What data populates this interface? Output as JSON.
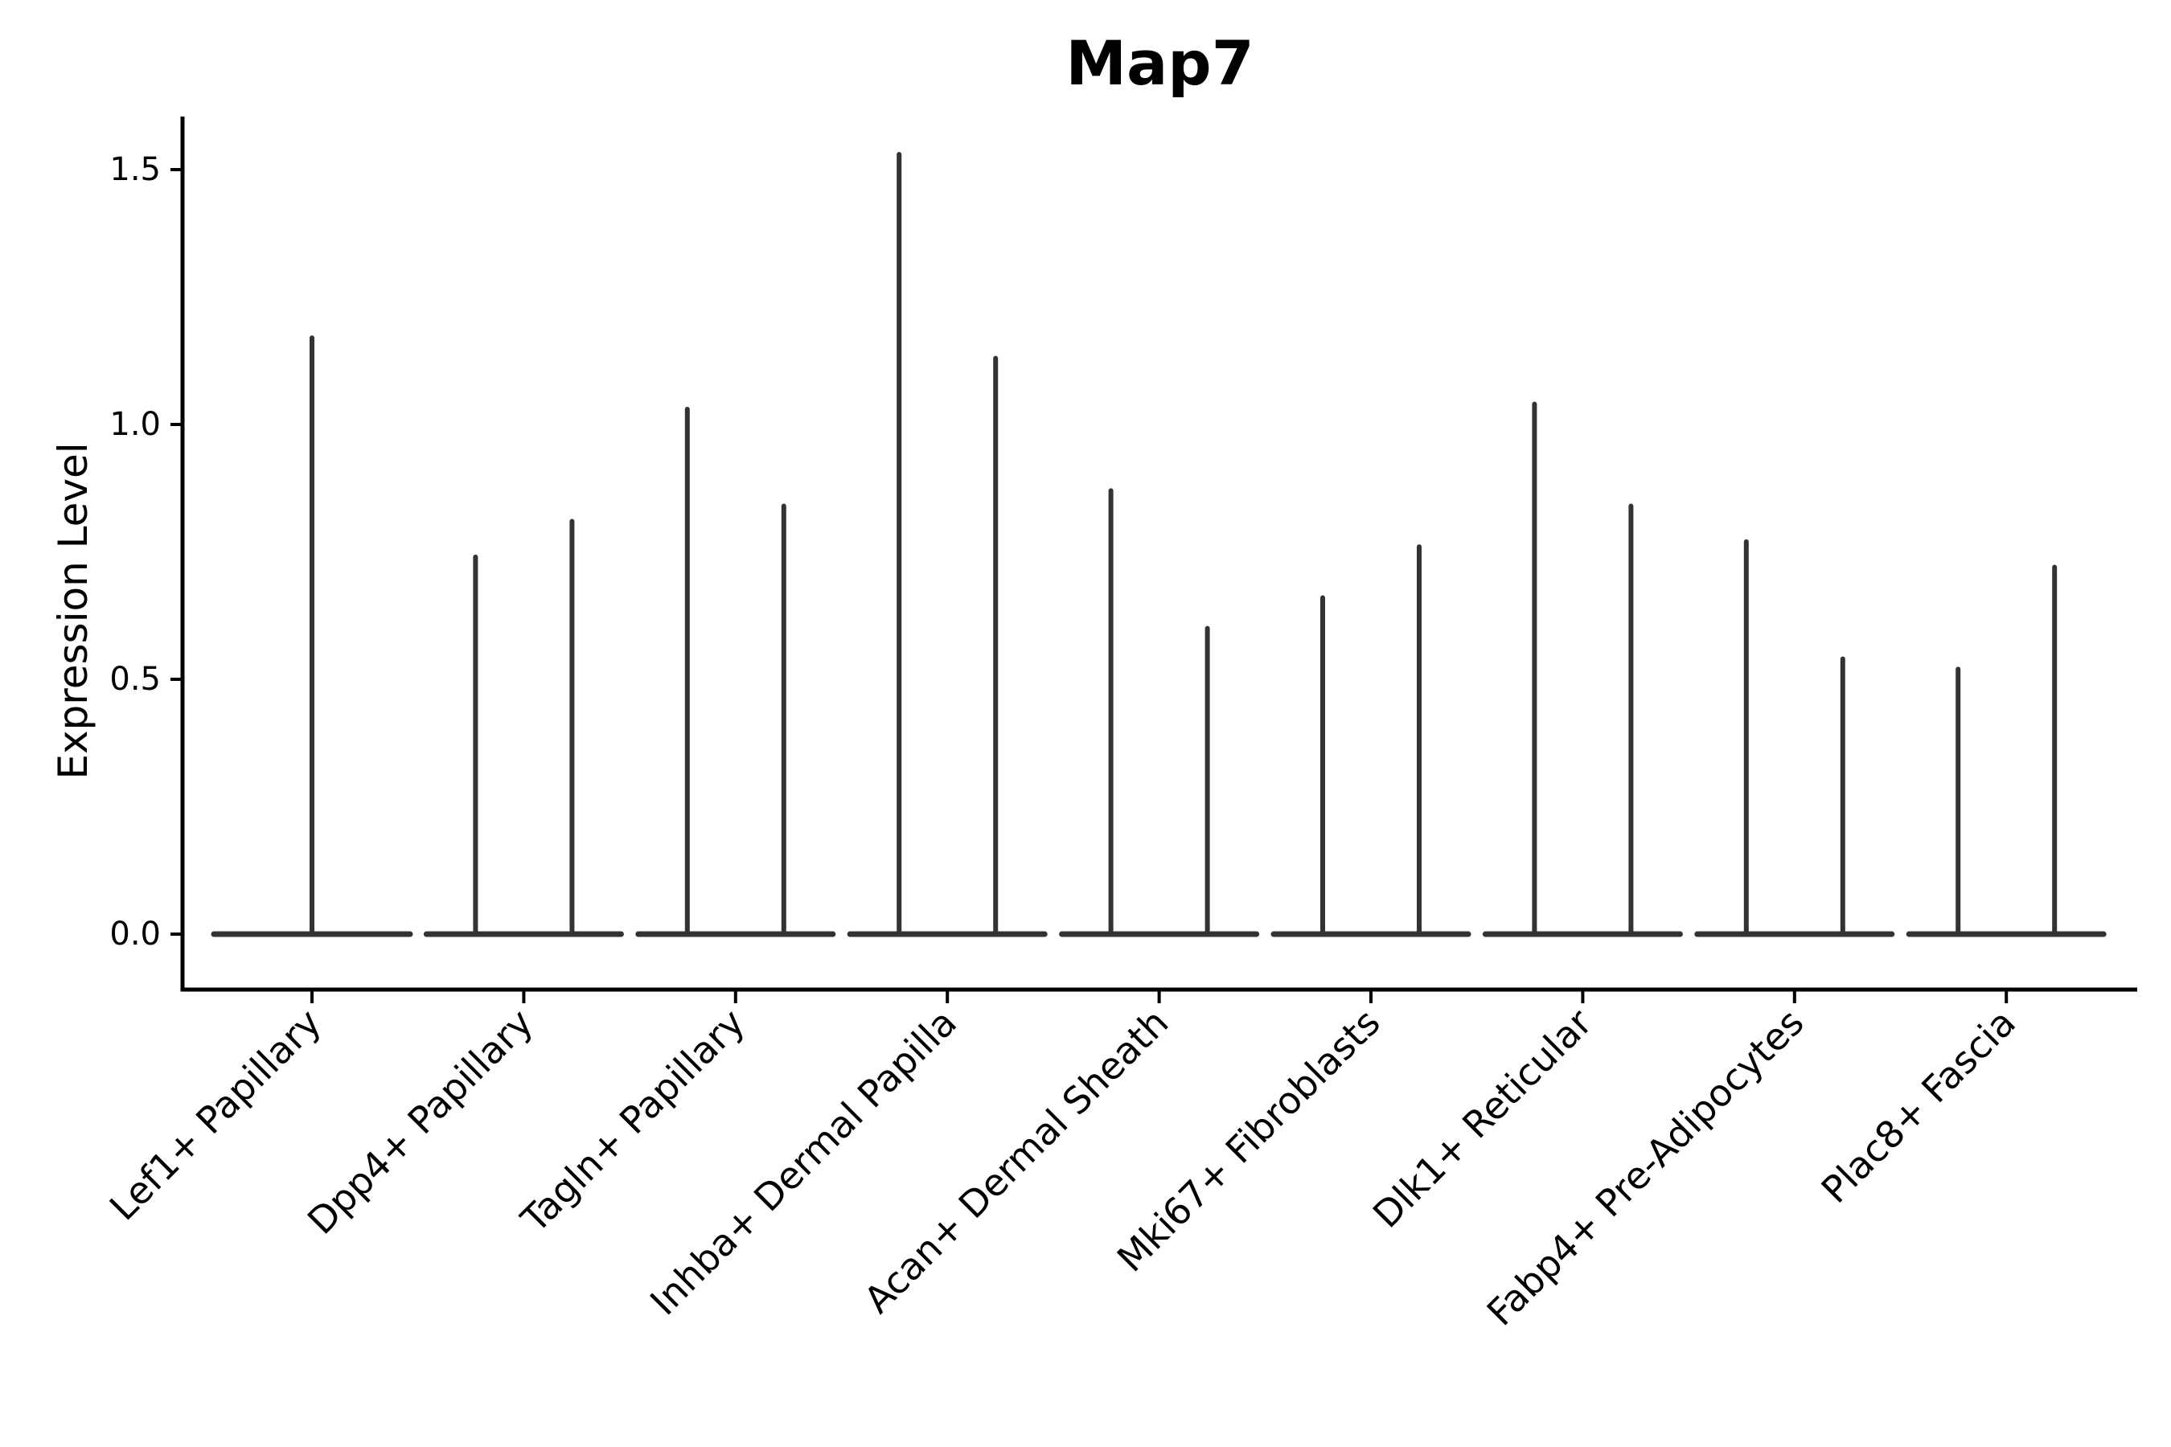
{
  "figure": {
    "title": "Map7",
    "ylabel": "Expression Level",
    "background_color": "#ffffff",
    "axis_color": "#000000",
    "violin_color": "#333333"
  },
  "chart_data": {
    "type": "violin",
    "title": "Map7",
    "xlabel": "",
    "ylabel": "Expression Level",
    "yticks": [
      0.0,
      0.5,
      1.0,
      1.5
    ],
    "ytick_labels": [
      "0.0",
      "0.5",
      "1.0",
      "1.5"
    ],
    "ylim": [
      -0.11,
      1.6
    ],
    "grid": false,
    "legend_position": "none",
    "x_tick_rotation_deg": 45,
    "categories": [
      "Lef1+ Papillary",
      "Dpp4+ Papillary",
      "Tagln+ Papillary",
      "Inhba+ Dermal Papilla",
      "Acan+ Dermal Sheath",
      "Mki67+ Fibroblasts",
      "Dlk1+ Reticular",
      "Fabp4+ Pre-Adipocytes",
      "Plac8+ Fascia"
    ],
    "series": [
      {
        "category": "Lef1+ Papillary",
        "violin_max_values": [
          1.17
        ]
      },
      {
        "category": "Dpp4+ Papillary",
        "violin_max_values": [
          0.74,
          0.81
        ]
      },
      {
        "category": "Tagln+ Papillary",
        "violin_max_values": [
          1.03,
          0.84
        ]
      },
      {
        "category": "Inhba+ Dermal Papilla",
        "violin_max_values": [
          1.53,
          1.13
        ]
      },
      {
        "category": "Acan+ Dermal Sheath",
        "violin_max_values": [
          0.87,
          0.6
        ]
      },
      {
        "category": "Mki67+ Fibroblasts",
        "violin_max_values": [
          0.66,
          0.76
        ]
      },
      {
        "category": "Dlk1+ Reticular",
        "violin_max_values": [
          1.04,
          0.84
        ]
      },
      {
        "category": "Fabp4+ Pre-Adipocytes",
        "violin_max_values": [
          0.77,
          0.54
        ]
      },
      {
        "category": "Plac8+ Fascia",
        "violin_max_values": [
          0.52,
          0.72
        ]
      }
    ],
    "notes": "All violins are near-zero-width KDE spikes rising from a wide flat base at expression level 0; the first category has a single violin, all others have two violins side by side."
  }
}
